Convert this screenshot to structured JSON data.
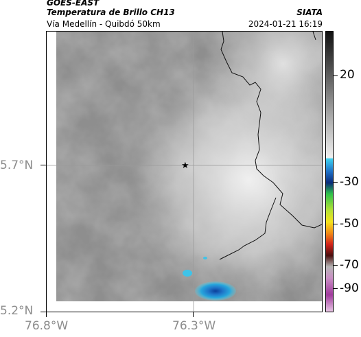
{
  "header": {
    "satellite": "GOES-EAST",
    "product": "Temperatura de Brillo CH13",
    "region": "Vía Medellín - Quibdó 50km",
    "source": "SIATA",
    "datetime": "2024-01-21 16:19"
  },
  "axes": {
    "lat_ticks": [
      "5.7°N",
      "5.2°N"
    ],
    "lon_ticks": [
      "76.8°W",
      "76.3°W"
    ]
  },
  "map": {
    "marker": "star-marker"
  },
  "colorbar": {
    "labels": [
      "20",
      "-30",
      "-50",
      "-70",
      "-90"
    ]
  }
}
